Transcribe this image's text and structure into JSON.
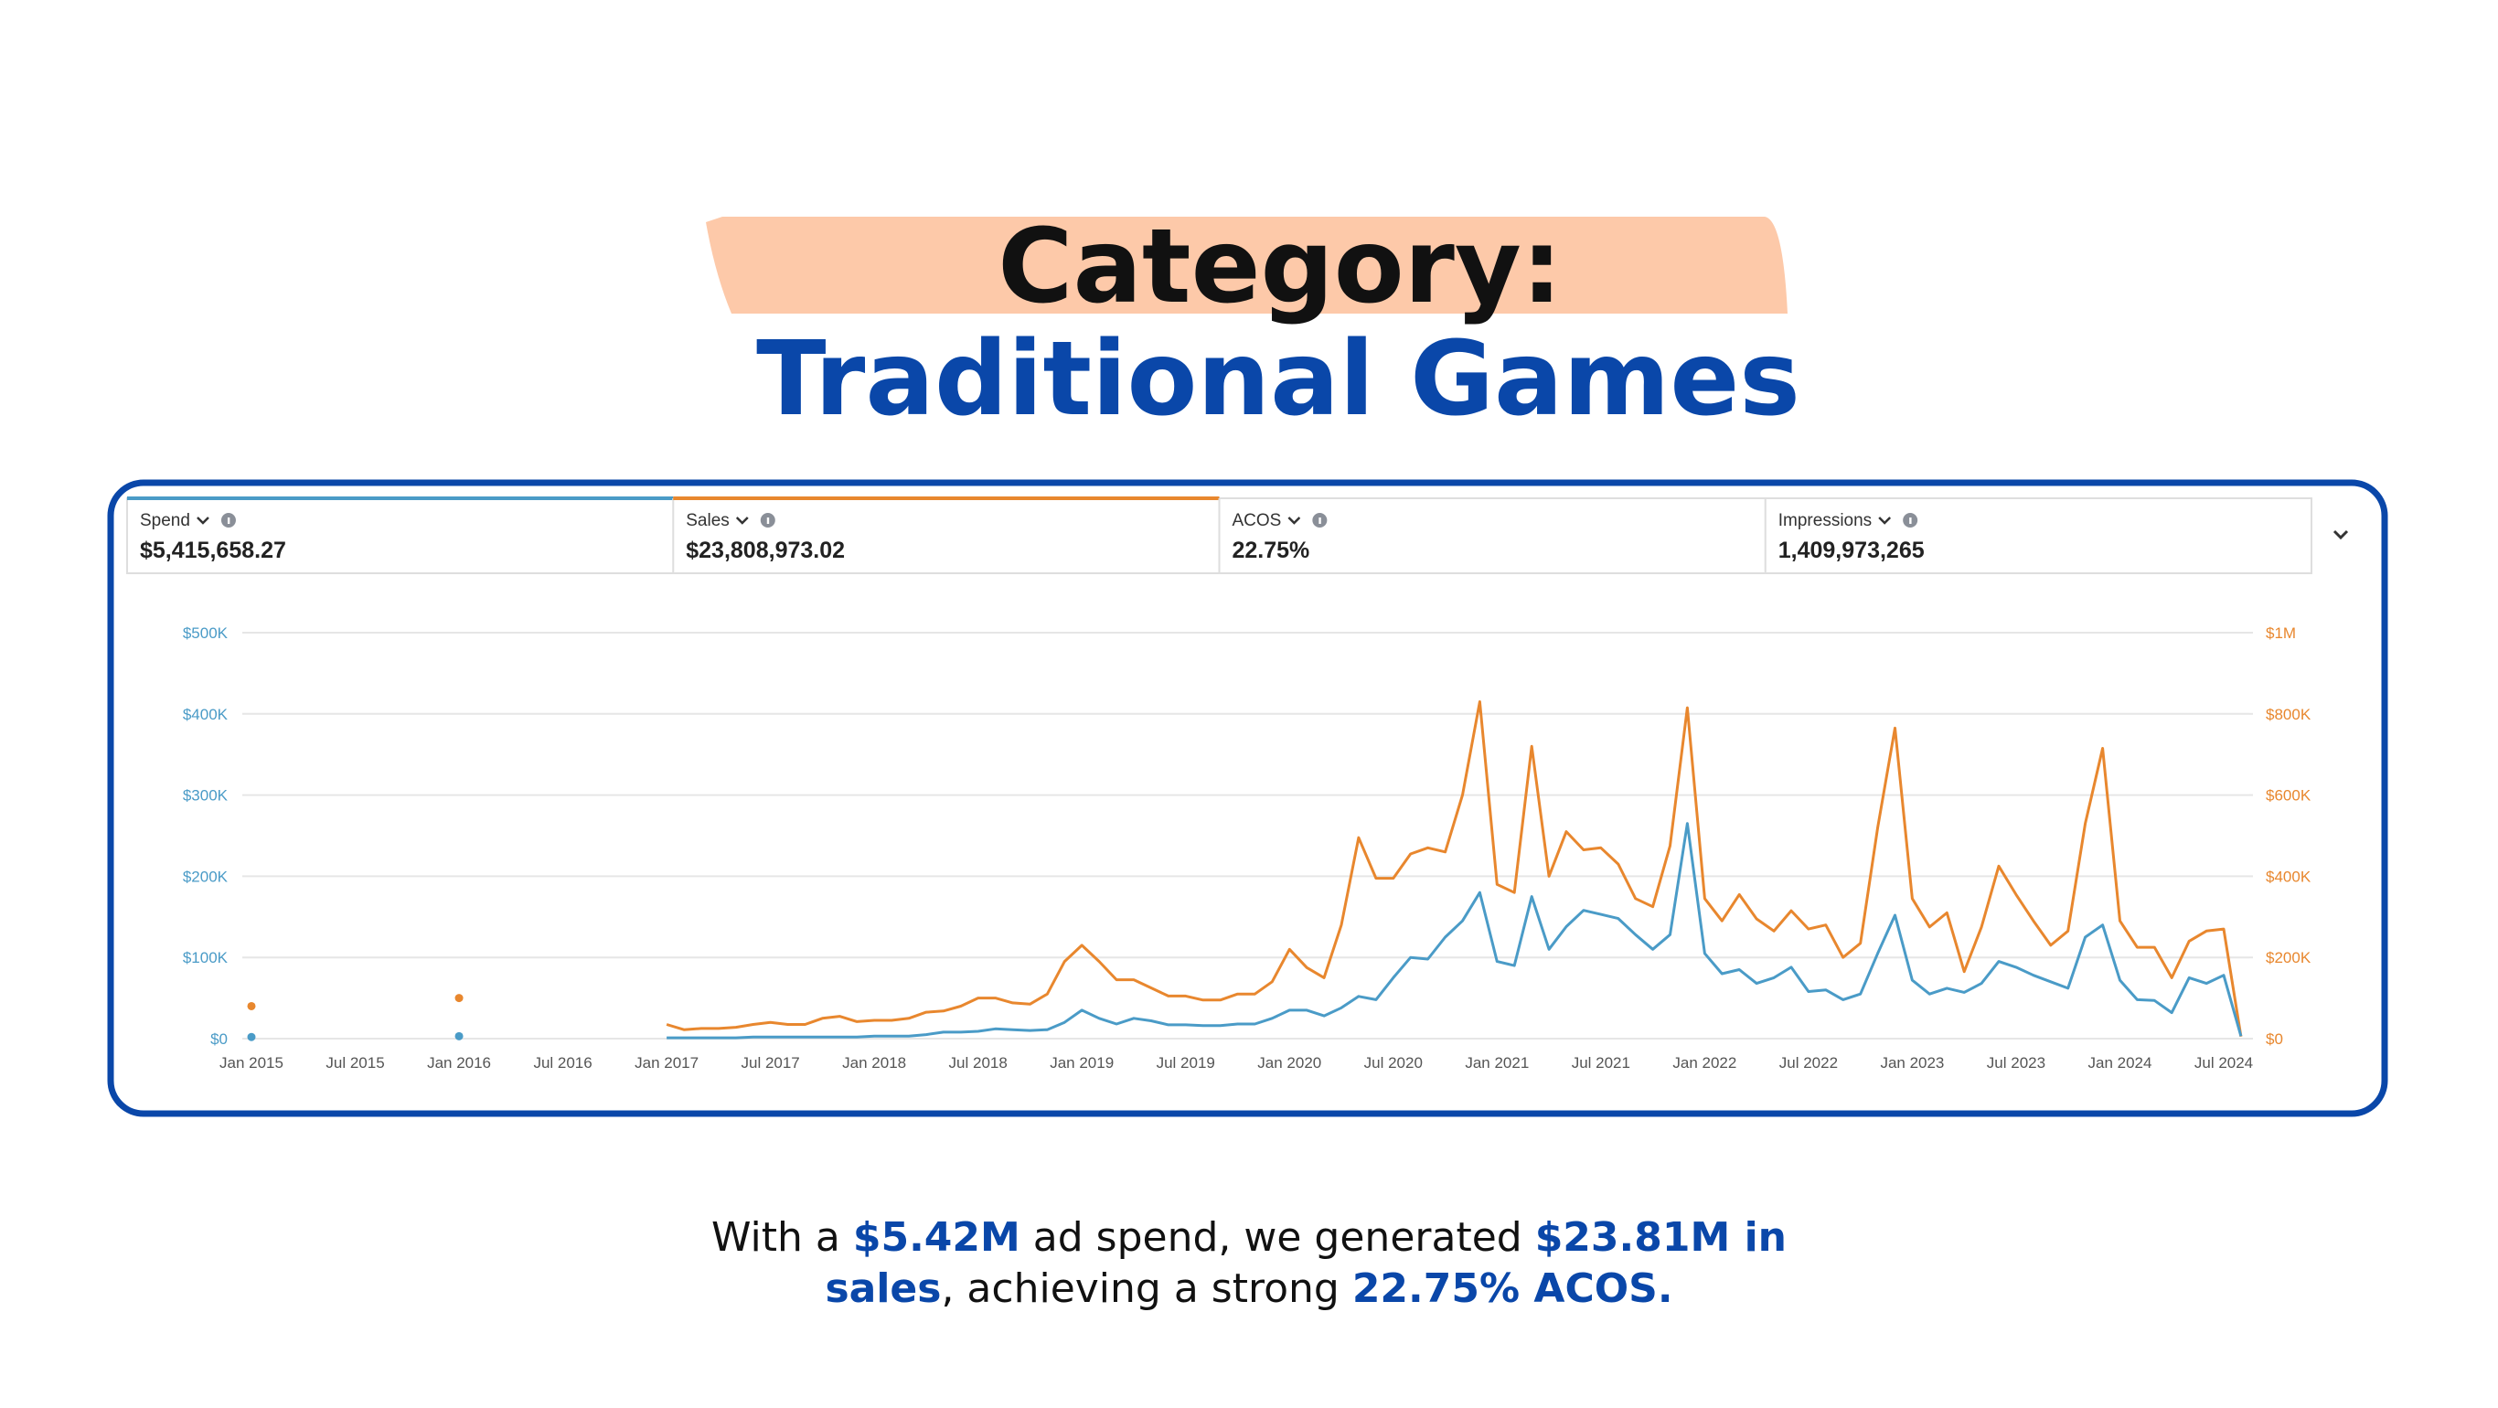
{
  "slide": {
    "title": "Category:",
    "subtitle": "Traditional Games",
    "caption": [
      [
        {
          "text": "With a ",
          "bold": false
        },
        {
          "text": "$5.42M",
          "bold": true
        },
        {
          "text": " ad spend, we generated ",
          "bold": false
        },
        {
          "text": "$23.81M in",
          "bold": true
        }
      ],
      [
        {
          "text": "sales",
          "bold": true
        },
        {
          "text": ", achieving a strong ",
          "bold": false
        },
        {
          "text": "22.75% ACOS.",
          "bold": true
        }
      ]
    ]
  },
  "metrics": [
    {
      "label": "Spend",
      "value": "$5,415,658.27",
      "color": "#4a9bc7"
    },
    {
      "label": "Sales",
      "value": "$23,808,973.02",
      "color": "#e8872e"
    },
    {
      "label": "ACOS",
      "value": "22.75%"
    },
    {
      "label": "Impressions",
      "value": "1,409,973,265"
    }
  ],
  "chart_data": {
    "type": "line",
    "grid": true,
    "categories": [
      "Jan 2015",
      null,
      null,
      null,
      null,
      null,
      "Jul 2015",
      null,
      null,
      null,
      null,
      null,
      "Jan 2016",
      null,
      null,
      null,
      null,
      null,
      "Jul 2016",
      null,
      null,
      null,
      null,
      null,
      "Jan 2017",
      null,
      null,
      null,
      null,
      null,
      "Jul 2017",
      null,
      null,
      null,
      null,
      null,
      "Jan 2018",
      null,
      null,
      null,
      null,
      null,
      "Jul 2018",
      null,
      null,
      null,
      null,
      null,
      "Jan 2019",
      null,
      null,
      null,
      null,
      null,
      "Jul 2019",
      null,
      null,
      null,
      null,
      null,
      "Jan 2020",
      null,
      null,
      null,
      null,
      null,
      "Jul 2020",
      null,
      null,
      null,
      null,
      null,
      "Jan 2021",
      null,
      null,
      null,
      null,
      null,
      "Jul 2021",
      null,
      null,
      null,
      null,
      null,
      "Jan 2022",
      null,
      null,
      null,
      null,
      null,
      "Jul 2022",
      null,
      null,
      null,
      null,
      null,
      "Jan 2023",
      null,
      null,
      null,
      null,
      null,
      "Jul 2023",
      null,
      null,
      null,
      null,
      null,
      "Jan 2024",
      null,
      null,
      null,
      null,
      null,
      "Jul 2024",
      null
    ],
    "ylim": [
      0,
      500000
    ],
    "yticks": [
      {
        "value": 0,
        "label": "$0"
      },
      {
        "value": 100000,
        "label": "$100K"
      },
      {
        "value": 200000,
        "label": "$200K"
      },
      {
        "value": 300000,
        "label": "$300K"
      },
      {
        "value": 400000,
        "label": "$400K"
      },
      {
        "value": 500000,
        "label": "$500K"
      }
    ],
    "y2lim": [
      0,
      1000000
    ],
    "y2ticks": [
      {
        "value": 0,
        "label": "$0"
      },
      {
        "value": 200000,
        "label": "$200K"
      },
      {
        "value": 400000,
        "label": "$400K"
      },
      {
        "value": 600000,
        "label": "$600K"
      },
      {
        "value": 800000,
        "label": "$800K"
      },
      {
        "value": 1000000,
        "label": "$1M"
      }
    ],
    "series": [
      {
        "name": "Spend",
        "color": "#4a9bc7",
        "values": [
          2000,
          null,
          null,
          null,
          null,
          null,
          null,
          null,
          null,
          null,
          null,
          null,
          3000,
          null,
          null,
          null,
          null,
          null,
          null,
          null,
          null,
          null,
          null,
          null,
          1000,
          1000,
          1000,
          1000,
          1000,
          2000,
          2000,
          2000,
          2000,
          2000,
          2000,
          2000,
          3000,
          3000,
          3000,
          5000,
          8000,
          8000,
          9000,
          12000,
          11000,
          10000,
          11000,
          20000,
          35000,
          25000,
          18000,
          25000,
          22000,
          17000,
          17000,
          16000,
          16000,
          18000,
          18000,
          25000,
          35000,
          35000,
          28000,
          38000,
          52000,
          48000,
          75000,
          100000,
          98000,
          125000,
          145000,
          180000,
          95000,
          90000,
          175000,
          110000,
          138000,
          158000,
          153000,
          148000,
          128000,
          110000,
          128000,
          265000,
          105000,
          80000,
          85000,
          68000,
          75000,
          88000,
          58000,
          60000,
          48000,
          55000,
          105000,
          152000,
          72000,
          55000,
          62000,
          57000,
          68000,
          95000,
          88000,
          78000,
          70000,
          62000,
          125000,
          140000,
          72000,
          48000,
          47000,
          32000,
          75000,
          68000,
          78000,
          3000
        ]
      },
      {
        "name": "Sales",
        "color": "#e8872e",
        "axis": "y2",
        "values": [
          80000,
          null,
          null,
          null,
          null,
          null,
          null,
          null,
          null,
          null,
          null,
          null,
          100000,
          null,
          null,
          null,
          null,
          null,
          null,
          null,
          null,
          null,
          null,
          null,
          35000,
          22000,
          25000,
          25000,
          28000,
          35000,
          40000,
          35000,
          35000,
          50000,
          55000,
          42000,
          45000,
          45000,
          50000,
          65000,
          68000,
          80000,
          100000,
          100000,
          88000,
          85000,
          110000,
          190000,
          230000,
          190000,
          145000,
          145000,
          125000,
          105000,
          105000,
          95000,
          95000,
          110000,
          110000,
          140000,
          220000,
          175000,
          150000,
          280000,
          495000,
          395000,
          395000,
          455000,
          470000,
          460000,
          600000,
          830000,
          380000,
          360000,
          720000,
          400000,
          510000,
          465000,
          470000,
          430000,
          345000,
          325000,
          475000,
          815000,
          345000,
          290000,
          355000,
          295000,
          265000,
          315000,
          270000,
          280000,
          200000,
          235000,
          520000,
          765000,
          345000,
          275000,
          310000,
          165000,
          275000,
          425000,
          355000,
          290000,
          230000,
          265000,
          530000,
          715000,
          290000,
          225000,
          225000,
          150000,
          240000,
          265000,
          270000,
          5000
        ]
      }
    ]
  }
}
